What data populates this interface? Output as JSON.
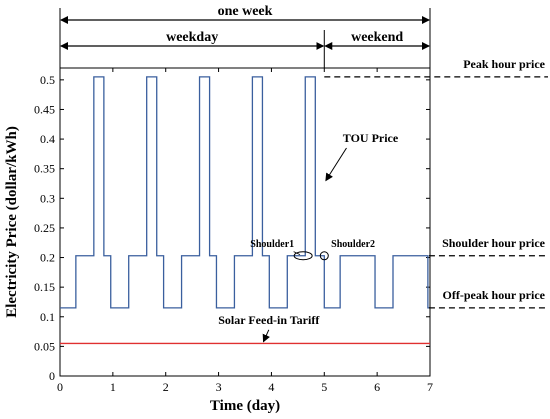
{
  "chart_data": {
    "type": "line",
    "xlabel": "Time (day)",
    "ylabel": "Electricity Price (dollar/kWh)",
    "xlim": [
      0,
      7
    ],
    "ylim": [
      0,
      0.52
    ],
    "xticks": [
      "0",
      "1",
      "2",
      "3",
      "4",
      "5",
      "6",
      "7"
    ],
    "yticks": [
      "0",
      "0.05",
      "0.1",
      "0.15",
      "0.2",
      "0.25",
      "0.3",
      "0.35",
      "0.4",
      "0.45",
      "0.5"
    ],
    "grid": false,
    "series": [
      {
        "name": "TOU Price",
        "color": "#3a5f9e",
        "x": [
          0,
          0.3,
          0.3,
          0.64,
          0.64,
          0.83,
          0.83,
          0.96,
          0.96,
          1.0,
          1.0,
          1.3,
          1.3,
          1.64,
          1.64,
          1.83,
          1.83,
          1.96,
          1.96,
          2.0,
          2.0,
          2.3,
          2.3,
          2.64,
          2.64,
          2.83,
          2.83,
          2.96,
          2.96,
          3.0,
          3.0,
          3.3,
          3.3,
          3.64,
          3.64,
          3.83,
          3.83,
          3.96,
          3.96,
          4.0,
          4.0,
          4.3,
          4.3,
          4.64,
          4.64,
          4.83,
          4.83,
          5.0,
          5.0,
          5.3,
          5.3,
          5.96,
          5.96,
          6.3,
          6.3,
          6.96,
          6.96,
          7.0
        ],
        "y": [
          0.115,
          0.115,
          0.203,
          0.203,
          0.505,
          0.505,
          0.203,
          0.203,
          0.115,
          0.115,
          0.115,
          0.115,
          0.203,
          0.203,
          0.505,
          0.505,
          0.203,
          0.203,
          0.115,
          0.115,
          0.115,
          0.115,
          0.203,
          0.203,
          0.505,
          0.505,
          0.203,
          0.203,
          0.115,
          0.115,
          0.115,
          0.115,
          0.203,
          0.203,
          0.505,
          0.505,
          0.203,
          0.203,
          0.115,
          0.115,
          0.115,
          0.115,
          0.203,
          0.203,
          0.505,
          0.505,
          0.203,
          0.203,
          0.115,
          0.115,
          0.203,
          0.203,
          0.115,
          0.115,
          0.203,
          0.203,
          0.115,
          0.115
        ]
      },
      {
        "name": "Solar Feed-in Tariff",
        "color": "#e03030",
        "x": [
          0,
          7
        ],
        "y": [
          0.055,
          0.055
        ]
      }
    ],
    "reference_levels": [
      {
        "label": "Peak hour price",
        "y": 0.505
      },
      {
        "label": "Shoulder hour price",
        "y": 0.203
      },
      {
        "label": "Off-peak hour price",
        "y": 0.115
      }
    ],
    "periods": [
      {
        "label": "one week",
        "from": 0,
        "to": 7
      },
      {
        "label": "weekday",
        "from": 0,
        "to": 5
      },
      {
        "label": "weekend",
        "from": 5,
        "to": 7
      }
    ],
    "annotations": [
      {
        "label": "TOU Price",
        "x": 4.95,
        "y": 0.32
      },
      {
        "label": "Shoulder1",
        "x": 4.6,
        "y": 0.203
      },
      {
        "label": "Shoulder2",
        "x": 5.0,
        "y": 0.203
      },
      {
        "label": "Solar Feed-in Tariff",
        "x": 3.95,
        "y": 0.055
      }
    ]
  }
}
